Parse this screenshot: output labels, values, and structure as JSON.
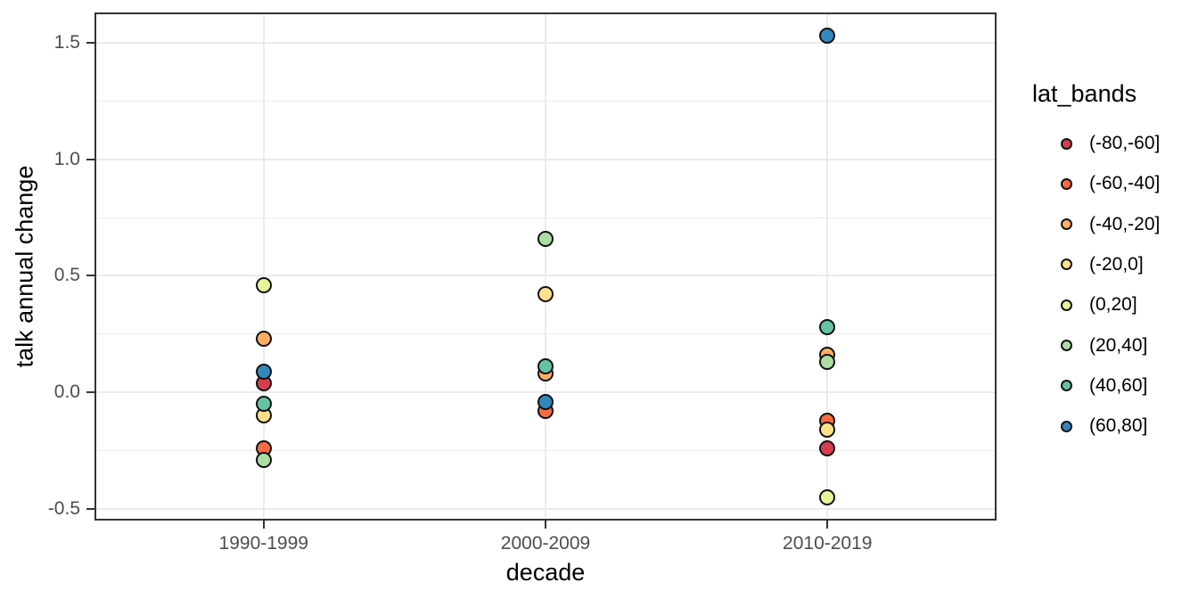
{
  "chart_data": {
    "type": "scatter",
    "title": "",
    "xlabel": "decade",
    "ylabel": "talk annual change",
    "categories": [
      "1990-1999",
      "2000-2009",
      "2010-2019"
    ],
    "y_tick_labels": [
      "-0.5",
      "0.0",
      "0.5",
      "1.0",
      "1.5"
    ],
    "y_tick_values": [
      -0.5,
      0.0,
      0.5,
      1.0,
      1.5
    ],
    "y_minor_values": [
      -0.25,
      0.25,
      0.75,
      1.25
    ],
    "ylim": [
      -0.55,
      1.63
    ],
    "grid": true,
    "legend": {
      "title": "lat_bands",
      "position": "right"
    },
    "series": [
      {
        "name": "(-80,-60]",
        "color": "#d53e4f",
        "values": [
          0.04,
          null,
          -0.24
        ]
      },
      {
        "name": "(-60,-40]",
        "color": "#f46d43",
        "values": [
          -0.24,
          -0.08,
          -0.12
        ]
      },
      {
        "name": "(-40,-20]",
        "color": "#fdae61",
        "values": [
          0.23,
          0.08,
          0.16
        ]
      },
      {
        "name": "(-20,0]",
        "color": "#fee08b",
        "values": [
          -0.1,
          0.42,
          -0.16
        ]
      },
      {
        "name": "(0,20]",
        "color": "#e6f598",
        "values": [
          0.46,
          null,
          -0.45
        ]
      },
      {
        "name": "(20,40]",
        "color": "#abdda4",
        "values": [
          -0.29,
          0.66,
          0.13
        ]
      },
      {
        "name": "(40,60]",
        "color": "#66c2a5",
        "values": [
          -0.05,
          0.11,
          0.28
        ]
      },
      {
        "name": "(60,80]",
        "color": "#3288bd",
        "values": [
          0.09,
          -0.04,
          1.53
        ]
      }
    ],
    "colors": {
      "background": "#ffffff",
      "panel_background": "#ffffff",
      "grid": "#ebebeb",
      "panel_border": "#333333",
      "tick_mark": "#333333",
      "tick_label": "#4d4d4d",
      "axis_title": "#000000",
      "point_outline": "#111111"
    }
  }
}
